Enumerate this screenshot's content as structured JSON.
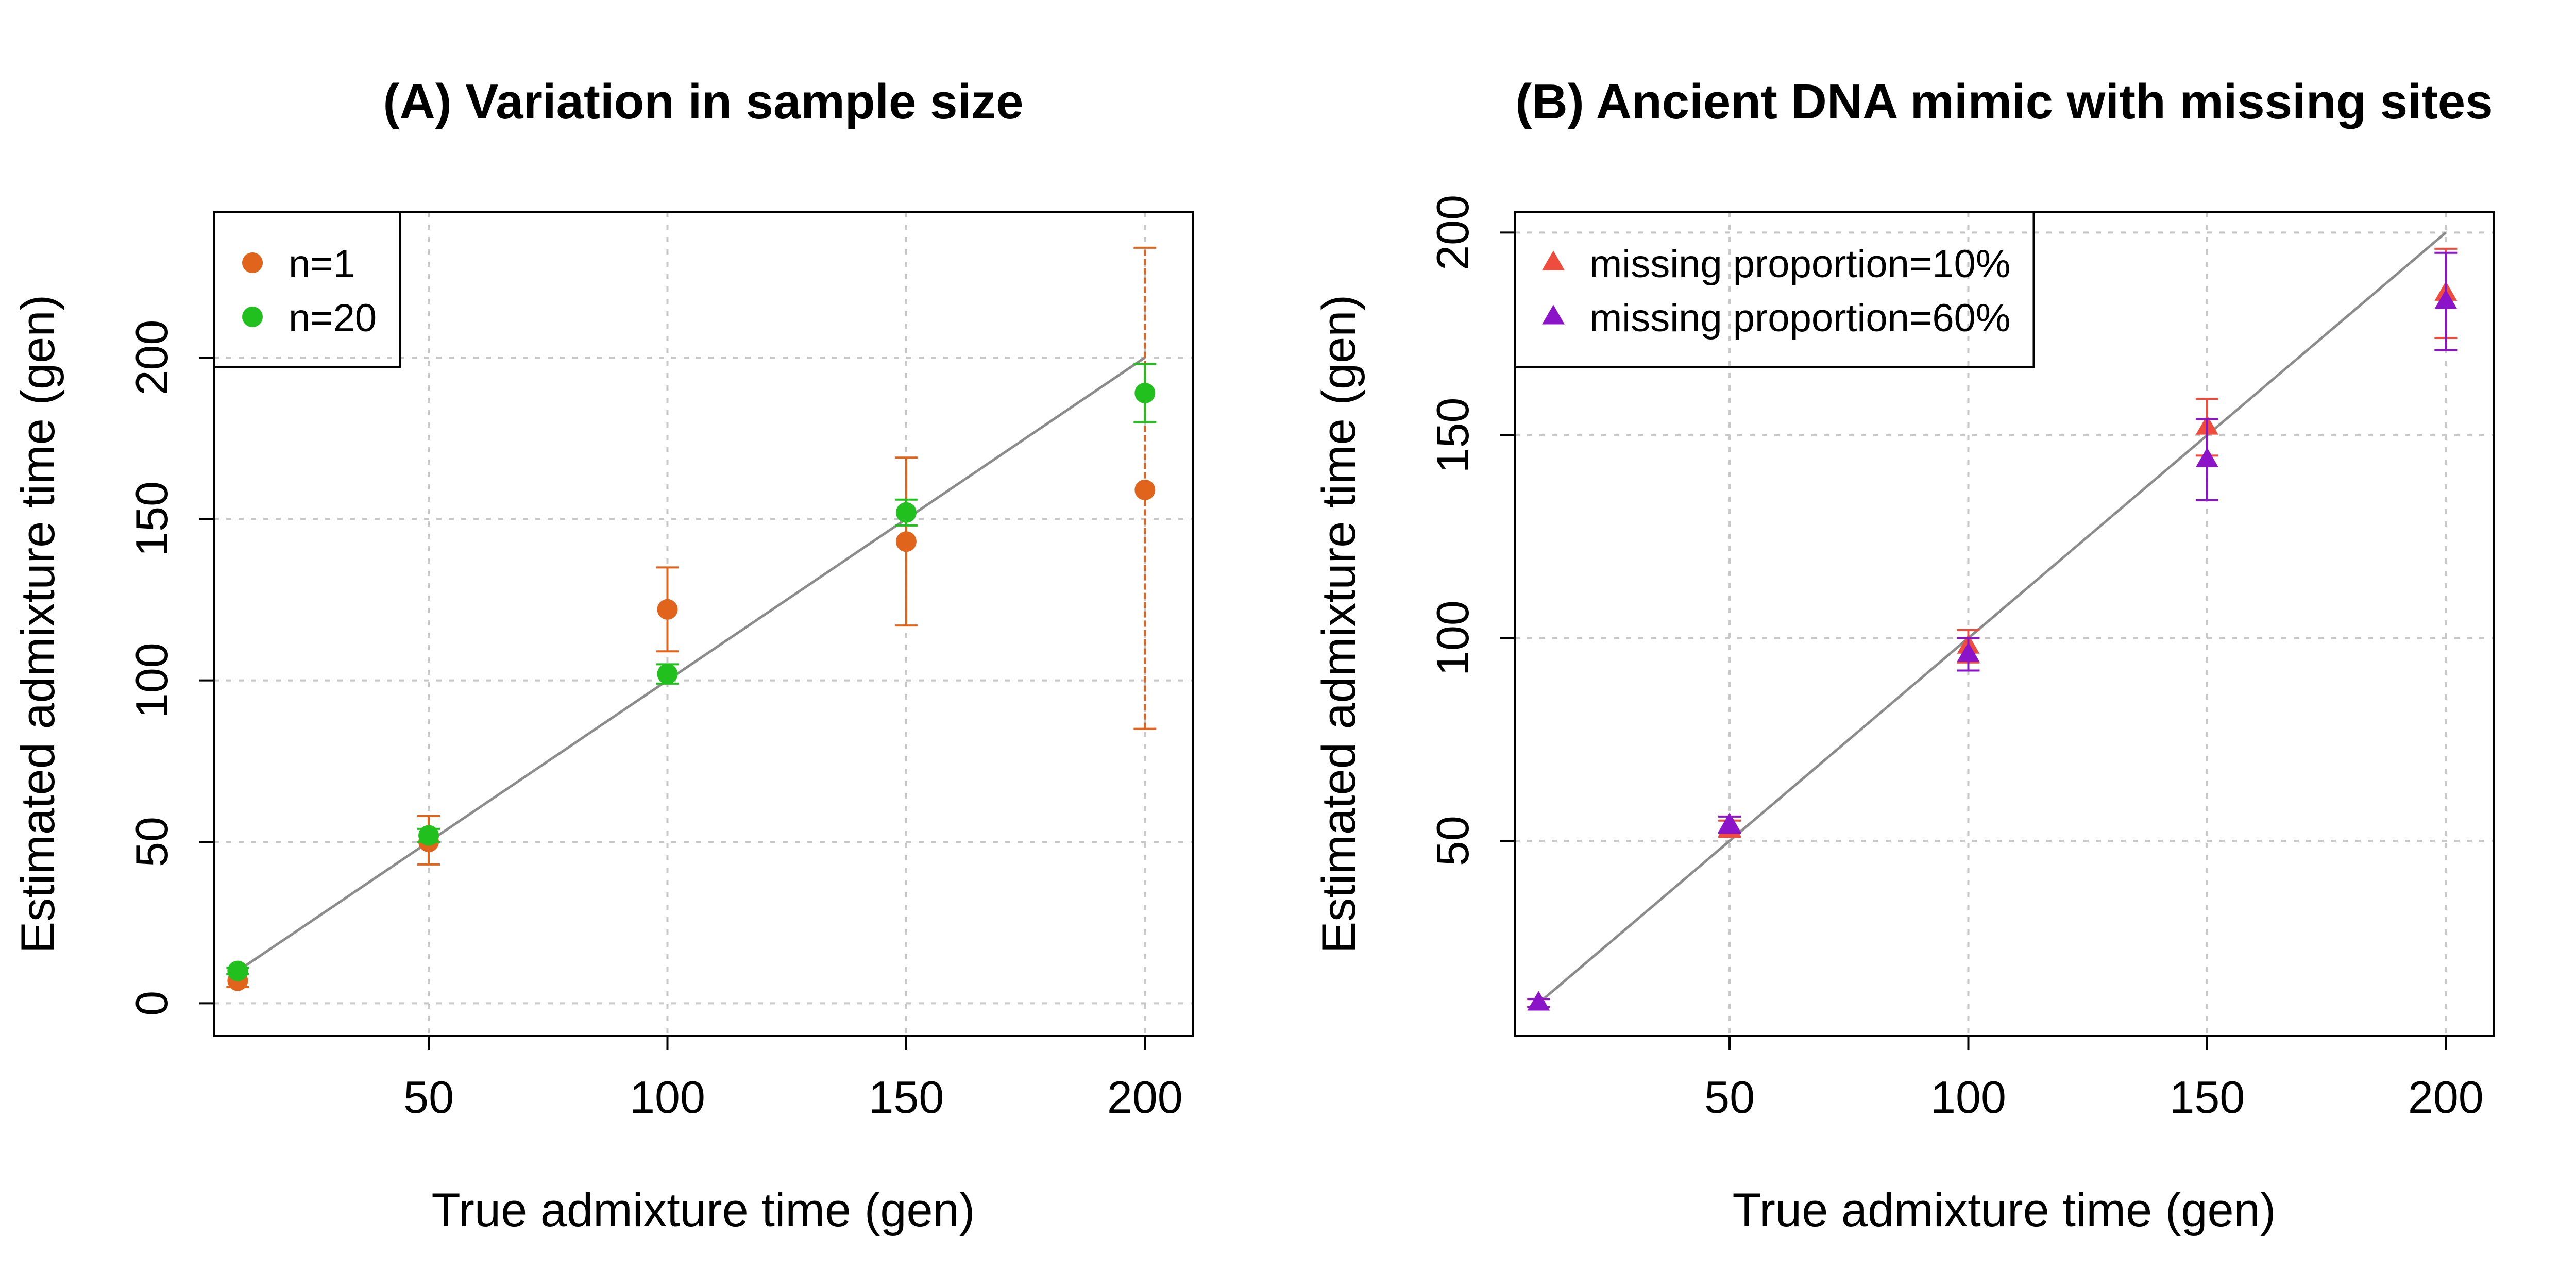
{
  "chart_data": [
    {
      "type": "scatter",
      "title": "(A) Variation in sample size",
      "xlabel": "True admixture time (gen)",
      "ylabel": "Estimated admixture time (gen)",
      "xlim": [
        5,
        210
      ],
      "ylim": [
        -10,
        245
      ],
      "xticks": [
        50,
        100,
        150,
        200
      ],
      "yticks": [
        0,
        50,
        100,
        150,
        200
      ],
      "grid": true,
      "legend_position": "top-left",
      "reference_line": "y = x",
      "series": [
        {
          "name": "n=1",
          "marker": "circle",
          "color": "#E0641C",
          "points": [
            {
              "x": 10,
              "y": 7,
              "lo": 5,
              "hi": 9
            },
            {
              "x": 50,
              "y": 50,
              "lo": 43,
              "hi": 58
            },
            {
              "x": 100,
              "y": 122,
              "lo": 109,
              "hi": 135
            },
            {
              "x": 150,
              "y": 143,
              "lo": 117,
              "hi": 169
            },
            {
              "x": 200,
              "y": 159,
              "lo": 85,
              "hi": 234
            }
          ]
        },
        {
          "name": "n=20",
          "marker": "circle",
          "color": "#22C01E",
          "points": [
            {
              "x": 10,
              "y": 10,
              "lo": 9,
              "hi": 11
            },
            {
              "x": 50,
              "y": 52,
              "lo": 50,
              "hi": 54
            },
            {
              "x": 100,
              "y": 102,
              "lo": 99,
              "hi": 105
            },
            {
              "x": 150,
              "y": 152,
              "lo": 148,
              "hi": 156
            },
            {
              "x": 200,
              "y": 189,
              "lo": 180,
              "hi": 198
            }
          ]
        }
      ]
    },
    {
      "type": "scatter",
      "title": "(B) Ancient DNA mimic with missing sites",
      "xlabel": "True admixture time (gen)",
      "ylabel": "Estimated admixture time (gen)",
      "xlim": [
        5,
        210
      ],
      "ylim": [
        2,
        205
      ],
      "xticks": [
        50,
        100,
        150,
        200
      ],
      "yticks": [
        50,
        100,
        150,
        200
      ],
      "grid": true,
      "legend_position": "top-left",
      "reference_line": "y = x",
      "series": [
        {
          "name": "missing proportion=10%",
          "marker": "triangle",
          "color": "#EE4C3C",
          "points": [
            {
              "x": 10,
              "y": 10,
              "lo": 9,
              "hi": 11
            },
            {
              "x": 50,
              "y": 53,
              "lo": 51,
              "hi": 55
            },
            {
              "x": 100,
              "y": 98,
              "lo": 94,
              "hi": 102
            },
            {
              "x": 150,
              "y": 152,
              "lo": 145,
              "hi": 159
            },
            {
              "x": 200,
              "y": 185,
              "lo": 174,
              "hi": 196
            }
          ]
        },
        {
          "name": "missing proportion=60%",
          "marker": "triangle",
          "color": "#8C14C8",
          "points": [
            {
              "x": 10,
              "y": 10,
              "lo": 9,
              "hi": 11
            },
            {
              "x": 50,
              "y": 54,
              "lo": 52,
              "hi": 56
            },
            {
              "x": 100,
              "y": 96,
              "lo": 92,
              "hi": 100
            },
            {
              "x": 150,
              "y": 144,
              "lo": 134,
              "hi": 154
            },
            {
              "x": 200,
              "y": 183,
              "lo": 171,
              "hi": 195
            }
          ]
        }
      ]
    }
  ]
}
